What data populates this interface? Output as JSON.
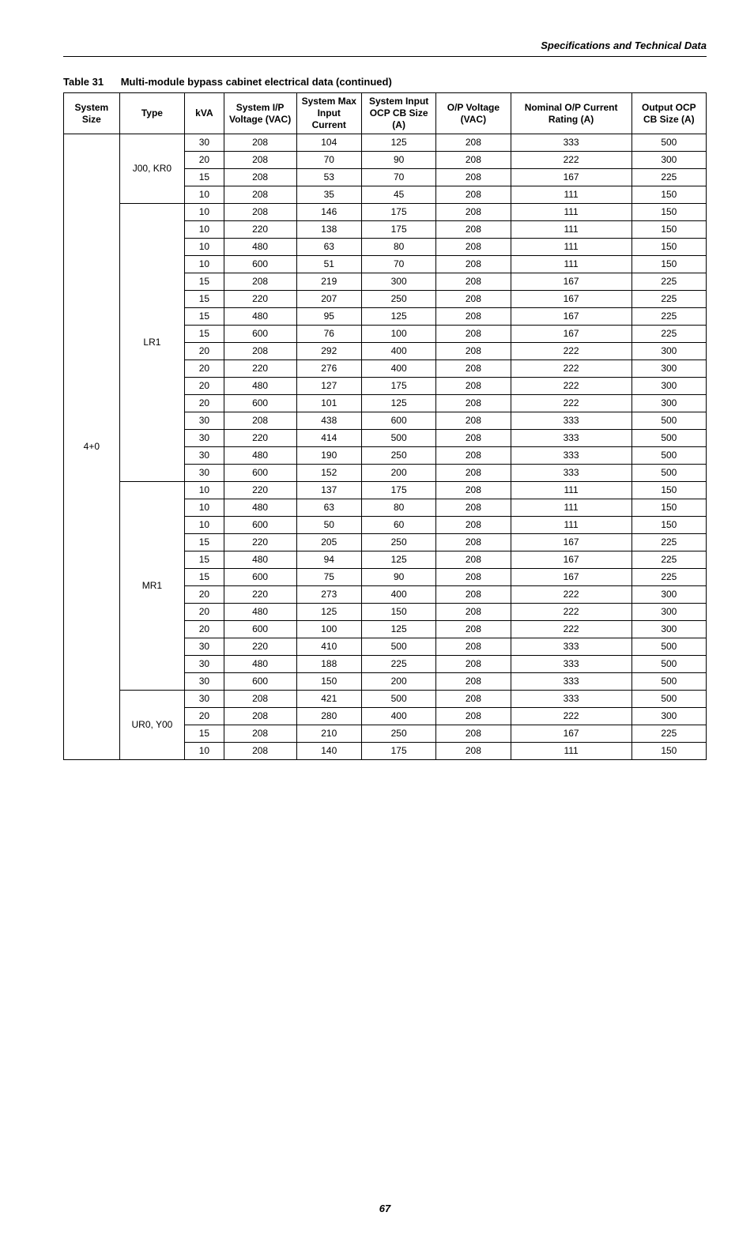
{
  "header": {
    "section_title": "Specifications and Technical Data"
  },
  "caption": {
    "label": "Table 31",
    "text": "Multi-module bypass cabinet electrical data (continued)"
  },
  "columns": [
    "System Size",
    "Type",
    "kVA",
    "System I/P Voltage (VAC)",
    "System Max Input Current",
    "System Input OCP CB Size (A)",
    "O/P Voltage (VAC)",
    "Nominal O/P Current Rating (A)",
    "Output OCP CB Size (A)"
  ],
  "system_size": "4+0",
  "groups": [
    {
      "type": "J00, KR0",
      "rows": [
        [
          "30",
          "208",
          "104",
          "125",
          "208",
          "333",
          "500"
        ],
        [
          "20",
          "208",
          "70",
          "90",
          "208",
          "222",
          "300"
        ],
        [
          "15",
          "208",
          "53",
          "70",
          "208",
          "167",
          "225"
        ],
        [
          "10",
          "208",
          "35",
          "45",
          "208",
          "111",
          "150"
        ]
      ]
    },
    {
      "type": "LR1",
      "rows": [
        [
          "10",
          "208",
          "146",
          "175",
          "208",
          "111",
          "150"
        ],
        [
          "10",
          "220",
          "138",
          "175",
          "208",
          "111",
          "150"
        ],
        [
          "10",
          "480",
          "63",
          "80",
          "208",
          "111",
          "150"
        ],
        [
          "10",
          "600",
          "51",
          "70",
          "208",
          "111",
          "150"
        ],
        [
          "15",
          "208",
          "219",
          "300",
          "208",
          "167",
          "225"
        ],
        [
          "15",
          "220",
          "207",
          "250",
          "208",
          "167",
          "225"
        ],
        [
          "15",
          "480",
          "95",
          "125",
          "208",
          "167",
          "225"
        ],
        [
          "15",
          "600",
          "76",
          "100",
          "208",
          "167",
          "225"
        ],
        [
          "20",
          "208",
          "292",
          "400",
          "208",
          "222",
          "300"
        ],
        [
          "20",
          "220",
          "276",
          "400",
          "208",
          "222",
          "300"
        ],
        [
          "20",
          "480",
          "127",
          "175",
          "208",
          "222",
          "300"
        ],
        [
          "20",
          "600",
          "101",
          "125",
          "208",
          "222",
          "300"
        ],
        [
          "30",
          "208",
          "438",
          "600",
          "208",
          "333",
          "500"
        ],
        [
          "30",
          "220",
          "414",
          "500",
          "208",
          "333",
          "500"
        ],
        [
          "30",
          "480",
          "190",
          "250",
          "208",
          "333",
          "500"
        ],
        [
          "30",
          "600",
          "152",
          "200",
          "208",
          "333",
          "500"
        ]
      ]
    },
    {
      "type": "MR1",
      "rows": [
        [
          "10",
          "220",
          "137",
          "175",
          "208",
          "111",
          "150"
        ],
        [
          "10",
          "480",
          "63",
          "80",
          "208",
          "111",
          "150"
        ],
        [
          "10",
          "600",
          "50",
          "60",
          "208",
          "111",
          "150"
        ],
        [
          "15",
          "220",
          "205",
          "250",
          "208",
          "167",
          "225"
        ],
        [
          "15",
          "480",
          "94",
          "125",
          "208",
          "167",
          "225"
        ],
        [
          "15",
          "600",
          "75",
          "90",
          "208",
          "167",
          "225"
        ],
        [
          "20",
          "220",
          "273",
          "400",
          "208",
          "222",
          "300"
        ],
        [
          "20",
          "480",
          "125",
          "150",
          "208",
          "222",
          "300"
        ],
        [
          "20",
          "600",
          "100",
          "125",
          "208",
          "222",
          "300"
        ],
        [
          "30",
          "220",
          "410",
          "500",
          "208",
          "333",
          "500"
        ],
        [
          "30",
          "480",
          "188",
          "225",
          "208",
          "333",
          "500"
        ],
        [
          "30",
          "600",
          "150",
          "200",
          "208",
          "333",
          "500"
        ]
      ]
    },
    {
      "type": "UR0, Y00",
      "rows": [
        [
          "30",
          "208",
          "421",
          "500",
          "208",
          "333",
          "500"
        ],
        [
          "20",
          "208",
          "280",
          "400",
          "208",
          "222",
          "300"
        ],
        [
          "15",
          "208",
          "210",
          "250",
          "208",
          "167",
          "225"
        ],
        [
          "10",
          "208",
          "140",
          "175",
          "208",
          "111",
          "150"
        ]
      ]
    }
  ],
  "page_number": "67"
}
